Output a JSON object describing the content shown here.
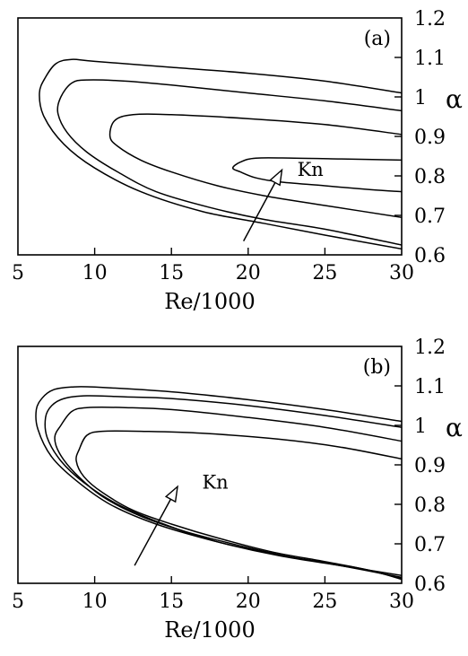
{
  "chart_data": [
    {
      "type": "line",
      "panel_label": "(a)",
      "xlabel": "Re/1000",
      "ylabel": "α",
      "xlim": [
        5,
        30
      ],
      "ylim": [
        0.6,
        1.2
      ],
      "xticks": [
        "5",
        "10",
        "15",
        "20",
        "25",
        "30"
      ],
      "yticks": [
        "0.6",
        "0.7",
        "0.8",
        "0.9",
        "1",
        "1.1",
        "1.2"
      ],
      "grid": false,
      "annotation": {
        "text": "Kn",
        "arrow_from": [
          19.7,
          0.635
        ],
        "arrow_to": [
          22.2,
          0.815
        ],
        "text_at": [
          23.2,
          0.8
        ]
      },
      "series": [
        {
          "upper": [
            [
              6.8,
              1.05
            ],
            [
              7.5,
              1.085
            ],
            [
              8.5,
              1.095
            ],
            [
              10,
              1.09
            ],
            [
              15,
              1.075
            ],
            [
              20,
              1.06
            ],
            [
              25,
              1.04
            ],
            [
              30,
              1.01
            ]
          ],
          "lower": [
            [
              6.8,
              1.05
            ],
            [
              6.4,
              1.01
            ],
            [
              6.7,
              0.95
            ],
            [
              8,
              0.88
            ],
            [
              10,
              0.82
            ],
            [
              13,
              0.76
            ],
            [
              17,
              0.71
            ],
            [
              21,
              0.68
            ],
            [
              25,
              0.65
            ],
            [
              30,
              0.615
            ]
          ]
        },
        {
          "upper": [
            [
              7.8,
              1.0
            ],
            [
              8.5,
              1.035
            ],
            [
              9.5,
              1.043
            ],
            [
              12,
              1.04
            ],
            [
              15,
              1.03
            ],
            [
              20,
              1.01
            ],
            [
              25,
              0.99
            ],
            [
              30,
              0.965
            ]
          ],
          "lower": [
            [
              7.8,
              1.0
            ],
            [
              7.6,
              0.96
            ],
            [
              8.2,
              0.91
            ],
            [
              9.5,
              0.86
            ],
            [
              11.5,
              0.81
            ],
            [
              14,
              0.76
            ],
            [
              17.5,
              0.72
            ],
            [
              21,
              0.69
            ],
            [
              25,
              0.665
            ],
            [
              30,
              0.625
            ]
          ]
        },
        {
          "upper": [
            [
              11,
              0.9
            ],
            [
              11.3,
              0.94
            ],
            [
              12.5,
              0.955
            ],
            [
              15,
              0.955
            ],
            [
              20,
              0.945
            ],
            [
              25,
              0.93
            ],
            [
              30,
              0.905
            ]
          ],
          "lower": [
            [
              11,
              0.9
            ],
            [
              11.5,
              0.875
            ],
            [
              13,
              0.84
            ],
            [
              15,
              0.81
            ],
            [
              18,
              0.775
            ],
            [
              21,
              0.75
            ],
            [
              25,
              0.725
            ],
            [
              30,
              0.695
            ]
          ]
        },
        {
          "upper": [
            [
              19,
              0.82
            ],
            [
              19.5,
              0.835
            ],
            [
              20.5,
              0.845
            ],
            [
              23,
              0.845
            ],
            [
              26,
              0.843
            ],
            [
              30,
              0.84
            ]
          ],
          "lower": [
            [
              19,
              0.82
            ],
            [
              19.5,
              0.81
            ],
            [
              20.5,
              0.795
            ],
            [
              22,
              0.785
            ],
            [
              25,
              0.775
            ],
            [
              28,
              0.765
            ],
            [
              30,
              0.76
            ]
          ]
        }
      ]
    },
    {
      "type": "line",
      "panel_label": "(b)",
      "xlabel": "Re/1000",
      "ylabel": "α",
      "xlim": [
        5,
        30
      ],
      "ylim": [
        0.6,
        1.2
      ],
      "xticks": [
        "5",
        "10",
        "15",
        "20",
        "25",
        "30"
      ],
      "yticks": [
        "0.6",
        "0.7",
        "0.8",
        "0.9",
        "1",
        "1.1",
        "1.2"
      ],
      "grid": false,
      "annotation": {
        "text": "Kn",
        "arrow_from": [
          12.6,
          0.645
        ],
        "arrow_to": [
          15.4,
          0.845
        ],
        "text_at": [
          17,
          0.84
        ]
      },
      "series": [
        {
          "upper": [
            [
              6.6,
              1.07
            ],
            [
              7.3,
              1.09
            ],
            [
              8.5,
              1.097
            ],
            [
              10,
              1.097
            ],
            [
              15,
              1.085
            ],
            [
              20,
              1.065
            ],
            [
              25,
              1.04
            ],
            [
              30,
              1.01
            ]
          ],
          "lower": [
            [
              6.6,
              1.07
            ],
            [
              6.2,
              1.04
            ],
            [
              6.3,
              0.99
            ],
            [
              7.2,
              0.92
            ],
            [
              8.8,
              0.86
            ],
            [
              11,
              0.8
            ],
            [
              14,
              0.75
            ],
            [
              18,
              0.705
            ],
            [
              22,
              0.67
            ],
            [
              26,
              0.645
            ],
            [
              30,
              0.62
            ]
          ]
        },
        {
          "upper": [
            [
              7.2,
              1.05
            ],
            [
              8,
              1.068
            ],
            [
              9.5,
              1.075
            ],
            [
              12,
              1.072
            ],
            [
              15,
              1.068
            ],
            [
              20,
              1.05
            ],
            [
              25,
              1.025
            ],
            [
              30,
              0.995
            ]
          ],
          "lower": [
            [
              7.2,
              1.05
            ],
            [
              6.8,
              1.02
            ],
            [
              6.9,
              0.97
            ],
            [
              7.8,
              0.91
            ],
            [
              9.3,
              0.855
            ],
            [
              11.5,
              0.8
            ],
            [
              14.5,
              0.75
            ],
            [
              18,
              0.705
            ],
            [
              22,
              0.672
            ],
            [
              26,
              0.645
            ],
            [
              30,
              0.615
            ]
          ]
        },
        {
          "upper": [
            [
              7.8,
              1.0
            ],
            [
              8.5,
              1.035
            ],
            [
              9.5,
              1.045
            ],
            [
              12,
              1.045
            ],
            [
              15,
              1.04
            ],
            [
              20,
              1.02
            ],
            [
              25,
              0.995
            ],
            [
              30,
              0.96
            ]
          ],
          "lower": [
            [
              7.8,
              1.0
            ],
            [
              7.4,
              0.97
            ],
            [
              7.7,
              0.93
            ],
            [
              8.7,
              0.88
            ],
            [
              10.5,
              0.82
            ],
            [
              13,
              0.77
            ],
            [
              16,
              0.73
            ],
            [
              19.5,
              0.695
            ],
            [
              23,
              0.665
            ],
            [
              27,
              0.64
            ],
            [
              30,
              0.612
            ]
          ]
        },
        {
          "upper": [
            [
              9,
              0.94
            ],
            [
              9.5,
              0.975
            ],
            [
              10.5,
              0.985
            ],
            [
              13,
              0.985
            ],
            [
              17,
              0.98
            ],
            [
              22,
              0.965
            ],
            [
              26,
              0.945
            ],
            [
              30,
              0.915
            ]
          ],
          "lower": [
            [
              9,
              0.94
            ],
            [
              8.8,
              0.91
            ],
            [
              9.3,
              0.87
            ],
            [
              10.5,
              0.83
            ],
            [
              12.5,
              0.785
            ],
            [
              15,
              0.75
            ],
            [
              18,
              0.715
            ],
            [
              21.5,
              0.68
            ],
            [
              25,
              0.655
            ],
            [
              28,
              0.632
            ],
            [
              30,
              0.61
            ]
          ]
        }
      ]
    }
  ]
}
